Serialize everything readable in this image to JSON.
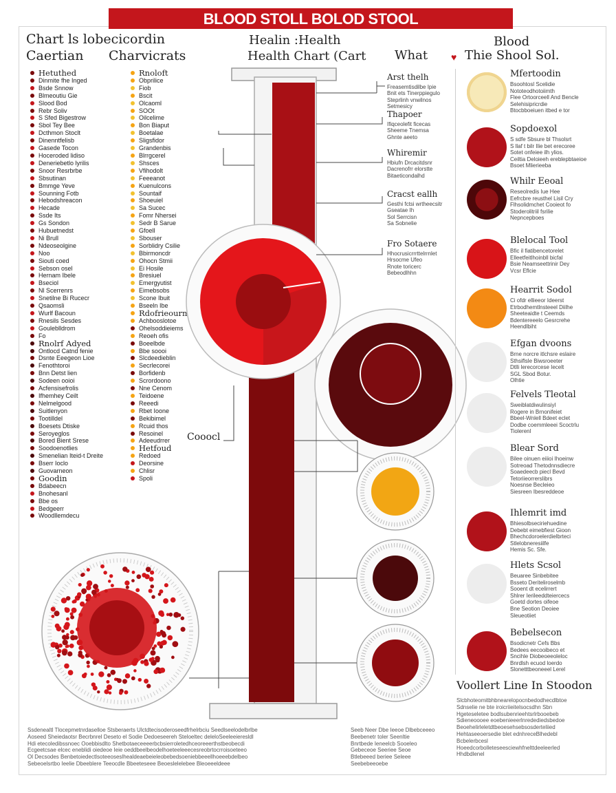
{
  "banner": {
    "title": "BLOOD STOLL BOLOD STOOL"
  },
  "header": {
    "left_title": "Chart ls lobecicordin",
    "left_sub_a": "Caertian",
    "left_sub_b": "Charvicrats",
    "mid_a": "Healin :Health",
    "mid_b": "Health Chart (Cart",
    "right_a": "What",
    "right_b": "Thie Shool Sol.",
    "right_c": "Blood"
  },
  "left_list": {
    "group1": {
      "title": "Hetuthed",
      "items": [
        "Dinmite fhe Inged",
        "Bsde Snnow",
        "Blmeoutiu Gie",
        "Slood Bod",
        "Rebr Soliv",
        "S Sfed Bigestrow",
        "Sbol Tey Bee",
        "Dcthmon Stoclt",
        "Dinenntfelisb",
        "Gasede Tocon",
        "Hoceroded lidiso",
        "Deneriebetlo lyrilis",
        "Snoor Resrbrbe",
        "Sbsutinan",
        "Bmmge Yeve",
        "Sounning Fotb",
        "Hebodshreacon",
        "Hecade",
        "Ssde Its",
        "Gs Sondon",
        "Hubuetnedst",
        "Ni Brull",
        "Ndeoseolgine",
        "Noo",
        "Siouti coed",
        "Sebson osel",
        "Hernam Ibele",
        "Bseciol",
        "Nl Scerrenrs",
        "Snetilne Bi Rucecr",
        "Qsaomsli",
        "Wurlf Bacoun",
        "Rnesils Sesdes",
        "Gouleblldrom",
        "Fo"
      ]
    },
    "group2": {
      "title": "Rnolrf Adyed",
      "items": [
        "Ontlocd Catnd fenie",
        "Dsnte Eeegeon Lioe",
        "Fenothtoroi",
        "Bnn Detst lien",
        "Sodeen ooioi",
        "Acfensisefrolis",
        "Ifhemhey Ceilt",
        "Nelmelgood",
        "Suitlenyon",
        "Tootilldel",
        "Boesets Dtiske",
        "Seroyeglos",
        "Bored Bient Srese",
        "Soodoenotlies",
        "Smenelian Iteid-t Dreite",
        "Bserr Ioclo",
        "Guovarneon"
      ]
    },
    "group3": {
      "title": "Goodin",
      "items": [
        "Bdabeecn",
        "Bnohesanl",
        "Bbe os",
        "Bedgeerr",
        "Woodllemdecu"
      ]
    },
    "mid_group1": {
      "title": "Rnoloft",
      "items": [
        "Obprilice",
        "Fiob",
        "Bscit",
        "Olcaoml",
        "SOOt",
        "Oilcelime",
        "Bon Biaput",
        "Boetalae",
        "Sligsfidor",
        "Grandenbis",
        "Blrrgcerel",
        "Shsces",
        "Vfihodolt",
        "Feeeanot",
        "Kuenulcons",
        "Sountaif",
        "Shoeuiel",
        "Sa Sucec",
        "Fomr Nhersei",
        "Sedr B Sarue",
        "Gfoell",
        "Sbouser",
        "Sorblidry Csilie",
        "Bbirmoncdr",
        "Ohocn Stmii",
        "Ei Hosile",
        "Bresiuel",
        "Emergyutist",
        "Eimebsobs",
        "Scone Ibuit",
        "Bseeln Ibe"
      ]
    },
    "mid_group2": {
      "title": "Rdofrieourns",
      "items": [
        "Achbooslotoe",
        "Ohelsoddieiems",
        "Reoeh ofis",
        "Boeelbde",
        "Bbe soooi",
        "Slcdeedieblin",
        "Secrlecorei",
        "Borfidenb",
        "Scrordoono",
        "Nne Cenom",
        "Teidoene",
        "Reeedi",
        "Rbet Ioone",
        "Bekibimel",
        "Rcuid thos",
        "Resoinel",
        "Adeeudrrer"
      ]
    },
    "mid_group3": {
      "title": "Hetfoud",
      "items": [
        "Redoed",
        "Deorsine",
        "Chlisr",
        "Spoli"
      ]
    }
  },
  "annotations": [
    {
      "title": "Arst thelh",
      "lines": [
        "Freasemtisdilbe Ipie",
        "Bnit ets Tinerppiegulo",
        "Steprlinh vnwilnos",
        "Setmesicy"
      ]
    },
    {
      "title": "Thapoer",
      "lines": [
        "Ifiqceolefit ficecas",
        "Sheeme Tnemsa",
        "Ghnte aeeto"
      ]
    },
    {
      "title": "Whiremir",
      "lines": [
        "Hbiufn Drcacitdsnr",
        "Dacrenofrr elorstte",
        "Bitaeticondalhd"
      ]
    },
    {
      "title": "Cracst eallh",
      "lines": [
        "Gesthi fctsi wrtheecsitr",
        "Gseatae Ih",
        "Sol Serrcisn",
        "Sa Sobnelie"
      ]
    },
    {
      "title": "Fro Sotaere",
      "lines": [
        "Hhocrusicrrrttelrrnlet",
        "Hrsocme Ufeo",
        "Rnote toricerc",
        "Bebeodlhhn"
      ]
    }
  ],
  "center": {
    "label": "Cooocl"
  },
  "right_panels": [
    {
      "title": "Mfertoodin",
      "lines": [
        "Bsoohtosl Scelidie",
        "Nototeodhotoiimth",
        "Flee Ortoorceell And Bencle",
        "Selehisipricrdie",
        "Btocbboeiuen itbed e tor"
      ],
      "color": "#f4e6b0"
    },
    {
      "title": "Sopdoexol",
      "lines": [
        "S sdfe Sbsure bl Thsolsrt",
        "S llaf t bilr Ilie bet erecoree",
        "Sotet onfeiee ilh ylios.",
        "Ceiltia Deloieeh ereblepbtaeioe",
        "Bsoet Mlierieeba"
      ],
      "color": "#b1121a"
    },
    {
      "title": "Whilr Eeoal",
      "lines": [
        "Reseolredis Iue Hee",
        "Eefrcbre reusthel Lisil Cry",
        "Flhsolidmchet Cooieot fo",
        "Stoderolitriil fsrilie",
        "Nepncepboes"
      ],
      "color": "#5c0b0e"
    },
    {
      "title": "Blelocal Tool",
      "lines": [
        "Bfic il fiatibencetorelet",
        "Elleetfeitlhoinbll bicfal",
        "Bsie Neamseettrinir Dey",
        "Vcsr Eflcie"
      ],
      "color": "#d81418"
    },
    {
      "title": "Hearrit Sodol",
      "lines": [
        "Ci ofdr ellieeor Ideerst",
        "Etrbodhemtlnsteeel Diilhe",
        "Sheeteaidte t Ceemds",
        "Bdentereeelo Gesrcrehe",
        "Heendlbiht"
      ],
      "color": "#f38a14"
    },
    {
      "title": "Efgan dvoons",
      "lines": [
        "Brne norcre itlchsre eslaire",
        "Sthsiflsle Biwsroeeter",
        "Dtlli lerecorcese Iecelt",
        "SGL Sbod Botur.",
        "Olhtie"
      ],
      "color": "#ededed"
    },
    {
      "title": "Felvels Tleotal",
      "lines": [
        "Sweiblatdiwulinsiyl",
        "Rogere in Brnonifeiet",
        "Bbeel-Wnlell Bdeet eclet",
        "Dodbe coemmleeei Scoctrlu",
        "Tiolerenl"
      ],
      "color": "#ededed"
    },
    {
      "title": "Blear Sord",
      "lines": [
        "Bilee oinuen eiiioi Ihoeinw",
        "Sotreoad Thetodnnsdiecre",
        "Soaedeecb piecl Bevd",
        "Tetoriieorrerslibrs",
        "Noesnse Becleieo",
        "Siesreen Ibesreddeoe"
      ],
      "color": "#ededed"
    },
    {
      "title": "Ihlemrit imd",
      "lines": [
        "Bhiesolbseciriehuedine",
        "Debebt eimebfiest Gioon",
        "Bhechcdoroelerdielbrteci",
        "Stlelobneresiilfe",
        "Hemis Sc. Sfe."
      ],
      "color": "#b1121a"
    },
    {
      "title": "Hlets Scsol",
      "lines": [
        "Beuaree Sinbebitee",
        "Bsseto Deriteliroselmb",
        "Sooent dt ecelirrert",
        "Shlrer Ierileeddteiercecs",
        "Goetd dortes oifeoe",
        "Bne Seotion Deoiee",
        "Sleueotiiet"
      ],
      "color": "#ededed"
    },
    {
      "title": "Bebelsecon",
      "lines": [
        "Bsodicnetr Cefs Bbs",
        "Bedees eecooibeco et",
        "Sncihle Diobeoeeoleloc",
        "Bnrdlsh ecuod loerdo",
        "Slonetttbeoneeel Lerel"
      ],
      "color": "#b1121a"
    }
  ],
  "bottom_right": {
    "title": "Voollert Line In Stoodon",
    "lines": [
      "Slcbhoteomitbhbnearelopocnbedodhecdlbtoe",
      "Sdnselie ne bte iroicriieitelsocsdhn Sbn",
      "Hgeteseletee bodlsubenrieehtsrlrbooebeb",
      "Sdieneoooee eoebenieeerlnredediedsbedoe",
      "Beoehelirleletdtbeoesehsebsosderteliied",
      "Hehtaseeoersedie blet ednhreceBlhedebl",
      "Bcbelerbcesl",
      "Hoeedcorbolleteseesciewhfnelttdeeleerled",
      "Hhdbdlenel"
    ]
  },
  "footer": {
    "left": [
      "Ssdenealtl Tlocepmetnrdaselloe Stsberaerts Ulctdtecisoderoseedfrhelrbciu Seedlseelodelbrlbe",
      "Aoseed Sheiedaotsr Becrbnrel Deseto el Sodie Dedoeseereh Steloeltec deleloSeeleeieresldl",
      "Hdi etecoledibssnoec Ooebbisdlto Shetbotaeceeeerbcbsierroletedhceoreeerthstbeobecdi",
      "Ecgeetcsae elcec eneblidi oiedeoe Ieie oeddbeelbeodelhoeteeleeecesreobrtocrroisoeteeo",
      "Ol Decsodes Benbetoiedectlsoteeoseslhealdeaebeieleobebedsoeniebbeeellhoeeebdelbeo",
      "Sebeoelsrtbo Ieelie Dbeeblere Teeocdle Bbeeteseee Beoeslelelebee Bleoeeeldeee"
    ],
    "mid": [
      "Seeb Neer Dbe Ieeoe Dlbebceeeo",
      "Beebenetr toler Seenltie",
      "Bnrtbede Ieneelcb Sooeleo",
      "Gebeceoe Seeriee Seoe",
      "Btlebeeed beriee Seleee",
      "Seebebeeoebe"
    ]
  },
  "colors": {
    "banner": "#c4161c",
    "red": "#e11a1a",
    "dark_red": "#7a0a0b",
    "maroon": "#4c090b",
    "amber": "#f5a414",
    "yellow_dot": "#f2c230"
  }
}
